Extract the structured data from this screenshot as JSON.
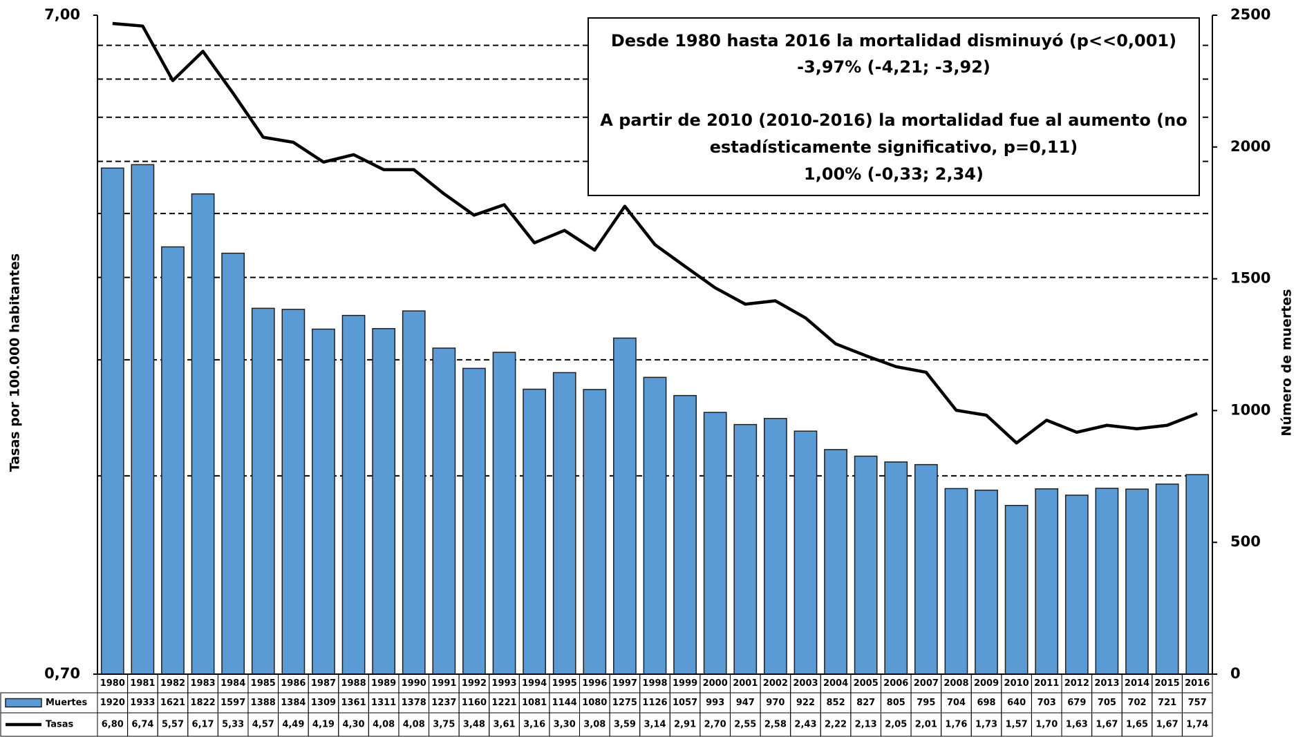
{
  "chart_data": {
    "type": "combo",
    "annotation": [
      "Desde 1980 hasta 2016 la mortalidad disminuyó (p<<0,001)",
      "-3,97%  (-4,21; -3,92)",
      "A partir de 2010 (2010-2016) la mortalidad fue al aumento (no",
      "estadísticamente significativo, p=0,11)",
      "1,00% (-0,33; 2,34)"
    ],
    "ylabel": "Tasas por 100.000 habitantes",
    "y2label": "Número de muertes",
    "categories": [
      "1980",
      "1981",
      "1982",
      "1983",
      "1984",
      "1985",
      "1986",
      "1987",
      "1988",
      "1989",
      "1990",
      "1991",
      "1992",
      "1993",
      "1994",
      "1995",
      "1996",
      "1997",
      "1998",
      "1999",
      "2000",
      "2001",
      "2002",
      "2003",
      "2004",
      "2005",
      "2006",
      "2007",
      "2008",
      "2009",
      "2010",
      "2011",
      "2012",
      "2013",
      "2014",
      "2015",
      "2016"
    ],
    "series": [
      {
        "name": "Muertes",
        "type": "bar",
        "axis": "y2",
        "color": "#5b9bd5",
        "values": [
          1920,
          1933,
          1621,
          1822,
          1597,
          1388,
          1384,
          1309,
          1361,
          1311,
          1378,
          1237,
          1160,
          1221,
          1081,
          1144,
          1080,
          1275,
          1126,
          1057,
          993,
          947,
          970,
          922,
          852,
          827,
          805,
          795,
          704,
          698,
          640,
          703,
          679,
          705,
          702,
          721,
          757
        ]
      },
      {
        "name": "Tasas",
        "type": "line",
        "axis": "y",
        "color": "#000000",
        "values": [
          6.8,
          6.74,
          5.57,
          6.17,
          5.33,
          4.57,
          4.49,
          4.19,
          4.3,
          4.08,
          4.08,
          3.75,
          3.48,
          3.61,
          3.16,
          3.3,
          3.08,
          3.59,
          3.14,
          2.91,
          2.7,
          2.55,
          2.58,
          2.43,
          2.22,
          2.13,
          2.05,
          2.01,
          1.76,
          1.73,
          1.57,
          1.7,
          1.63,
          1.67,
          1.65,
          1.67,
          1.74
        ],
        "value_labels": [
          "6,80",
          "6,74",
          "5,57",
          "6,17",
          "5,33",
          "4,57",
          "4,49",
          "4,19",
          "4,30",
          "4,08",
          "4,08",
          "3,75",
          "3,48",
          "3,61",
          "3,16",
          "3,30",
          "3,08",
          "3,59",
          "3,14",
          "2,91",
          "2,70",
          "2,55",
          "2,58",
          "2,43",
          "2,22",
          "2,13",
          "2,05",
          "2,01",
          "1,76",
          "1,73",
          "1,57",
          "1,70",
          "1,63",
          "1,67",
          "1,65",
          "1,67",
          "1,74"
        ]
      }
    ],
    "ylog": true,
    "ylim": [
      0.7,
      7
    ],
    "yticks": [
      {
        "value": 0.7,
        "label": "0,70"
      },
      {
        "value": 7,
        "label": "7,00"
      }
    ],
    "ygrid": [
      1.4,
      2.1,
      2.8,
      3.5,
      4.2,
      4.9,
      5.6,
      6.3
    ],
    "y2lim": [
      0,
      2500
    ],
    "y2ticks": [
      0,
      500,
      1000,
      1500,
      2000,
      2500
    ],
    "grid": true
  }
}
